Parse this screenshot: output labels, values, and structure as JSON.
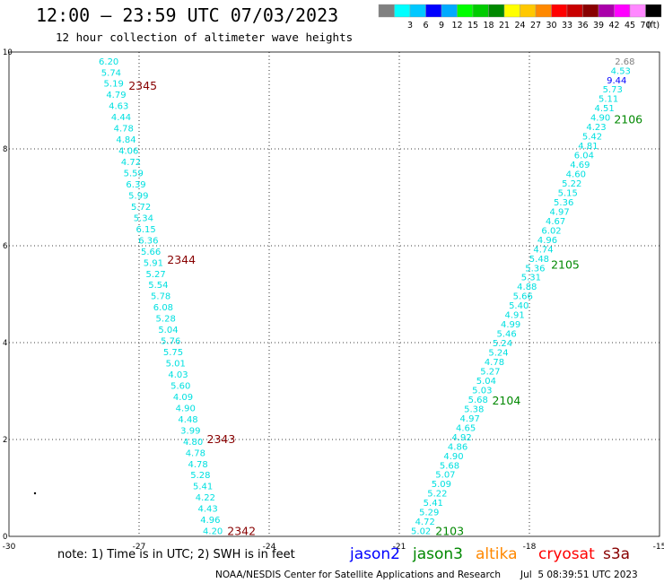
{
  "header": {
    "title": "12:00 – 23:59 UTC 07/03/2023",
    "subtitle": "12 hour collection of altimeter wave heights"
  },
  "colorbar": {
    "unit": "(ft)",
    "bins": [
      {
        "label": "",
        "color": "#808080"
      },
      {
        "label": "3",
        "color": "#00ffff"
      },
      {
        "label": "6",
        "color": "#00c8ff"
      },
      {
        "label": "9",
        "color": "#0000ff"
      },
      {
        "label": "12",
        "color": "#00aaff"
      },
      {
        "label": "15",
        "color": "#00ff00"
      },
      {
        "label": "18",
        "color": "#00cc00"
      },
      {
        "label": "21",
        "color": "#008800"
      },
      {
        "label": "24",
        "color": "#ffff00"
      },
      {
        "label": "27",
        "color": "#ffc800"
      },
      {
        "label": "30",
        "color": "#ff8800"
      },
      {
        "label": "33",
        "color": "#ff0000"
      },
      {
        "label": "36",
        "color": "#c80000"
      },
      {
        "label": "39",
        "color": "#880000"
      },
      {
        "label": "42",
        "color": "#aa00aa"
      },
      {
        "label": "45",
        "color": "#ff00ff"
      },
      {
        "label": "70",
        "color": "#ff88ff"
      },
      {
        "label": "",
        "color": "#000000"
      }
    ]
  },
  "map": {
    "lon_range": [
      -30,
      -15
    ],
    "lat_range": [
      0,
      10
    ],
    "lon_ticks": [
      "-30",
      "-27",
      "-24",
      "-21",
      "-18",
      "-15"
    ],
    "lat_ticks": [
      "0",
      "2",
      "4",
      "6",
      "8",
      "10"
    ],
    "grid": true
  },
  "tracks": [
    {
      "color": "#00e0e0",
      "top_lon": -27.7,
      "top_lat": 9.8,
      "bottom_lon": -25.3,
      "bottom_lat": 0.1,
      "labels": [
        "6.20",
        "5.74",
        "5.19",
        "4.79",
        "4.63",
        "4.44",
        "4.78",
        "4.84",
        "4.06",
        "4.72",
        "5.59",
        "6.39",
        "5.99",
        "5.72",
        "5.34",
        "6.15",
        "6.36",
        "5.66",
        "5.91",
        "5.27",
        "5.54",
        "5.78",
        "6.08",
        "5.28",
        "5.04",
        "5.76",
        "5.75",
        "5.01",
        "4.03",
        "5.60",
        "4.09",
        "4.90",
        "4.48",
        "3.99",
        "4.80",
        "4.78",
        "4.78",
        "5.28",
        "5.41",
        "4.22",
        "4.43",
        "4.96",
        "4.20"
      ],
      "passes": [
        {
          "id": "2345",
          "lat": 9.3,
          "color": "#880000"
        },
        {
          "id": "2344",
          "lat": 5.7,
          "color": "#880000"
        },
        {
          "id": "2343",
          "lat": 2.0,
          "color": "#880000"
        },
        {
          "id": "2342",
          "lat": 0.1,
          "color": "#880000"
        }
      ]
    },
    {
      "color": "#00e0e0",
      "top_lon": -15.8,
      "top_lat": 9.8,
      "bottom_lon": -20.5,
      "bottom_lat": 0.1,
      "labels": [
        "2.68",
        "4.53",
        "9.44",
        "5.73",
        "5.11",
        "4.51",
        "4.90",
        "4.23",
        "5.42",
        "4.81",
        "6.04",
        "4.69",
        "4.60",
        "5.22",
        "5.15",
        "5.36",
        "4.97",
        "4.67",
        "6.02",
        "4.96",
        "4.74",
        "5.48",
        "5.36",
        "5.31",
        "4.88",
        "5.66",
        "5.40",
        "4.91",
        "4.99",
        "5.46",
        "5.24",
        "5.24",
        "4.78",
        "5.27",
        "5.04",
        "5.03",
        "5.68",
        "5.38",
        "4.97",
        "4.65",
        "4.92",
        "4.86",
        "4.90",
        "5.68",
        "5.07",
        "5.09",
        "5.22",
        "5.41",
        "5.29",
        "4.72",
        "5.02"
      ],
      "special_colors": {
        "0": "#808080",
        "2": "#0000ff"
      },
      "passes": [
        {
          "id": "2106",
          "lat": 8.6,
          "color": "#008800"
        },
        {
          "id": "2105",
          "lat": 5.6,
          "color": "#008800"
        },
        {
          "id": "2104",
          "lat": 2.8,
          "color": "#008800"
        },
        {
          "id": "2103",
          "lat": 0.1,
          "color": "#008800"
        }
      ]
    }
  ],
  "footer": {
    "note": "note: 1) Time is in UTC; 2) SWH is in feet",
    "satellites": [
      {
        "name": "jason2",
        "color": "#0000ff"
      },
      {
        "name": "jason3",
        "color": "#008800"
      },
      {
        "name": "altika",
        "color": "#ff8800"
      },
      {
        "name": "cryosat",
        "color": "#ff0000"
      },
      {
        "name": "s3a",
        "color": "#880000"
      }
    ],
    "credit": "NOAA/NESDIS Center for Satellite Applications and Research",
    "timestamp": "Jul  5 08:39:51 UTC 2023"
  }
}
